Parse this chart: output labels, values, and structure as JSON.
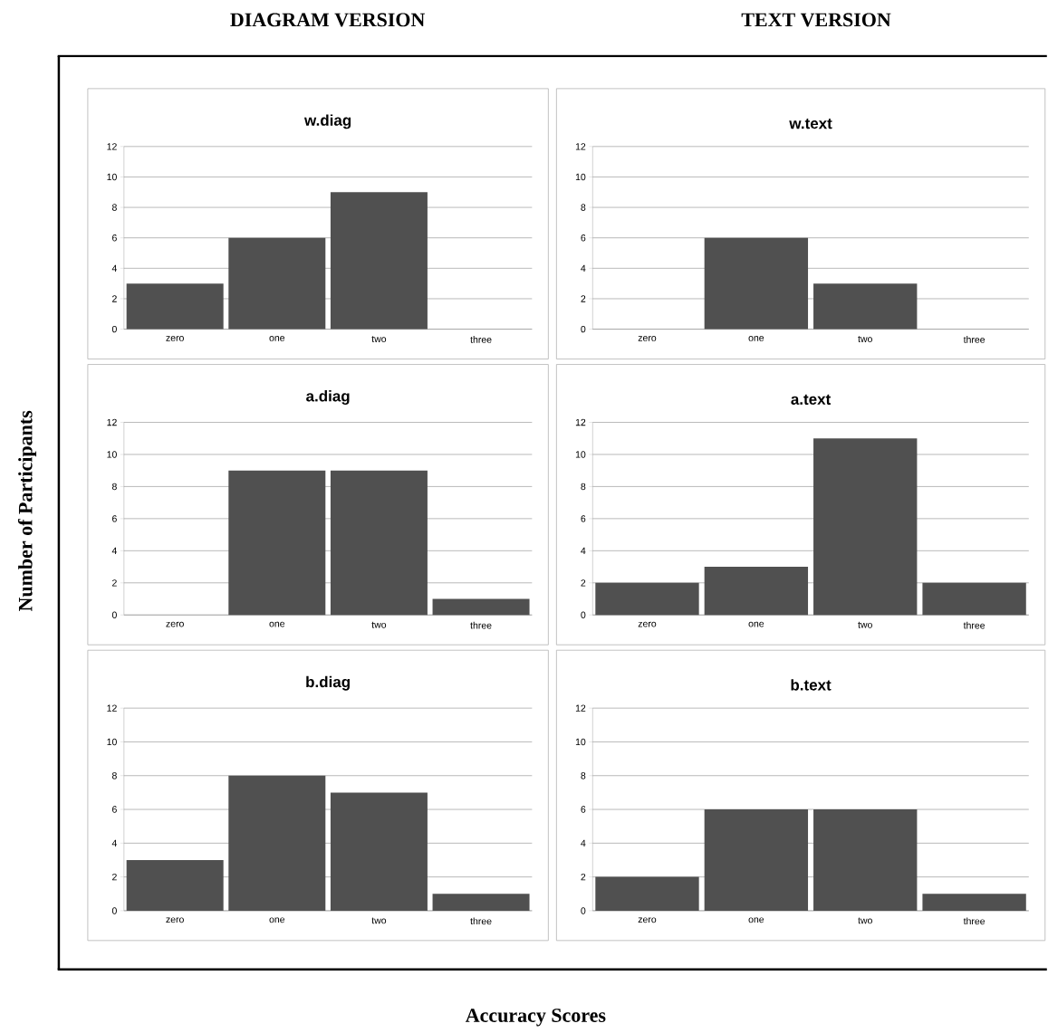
{
  "chart_data": [
    {
      "type": "bar",
      "title": "w.diag",
      "categories": [
        "zero",
        "one",
        "two",
        "three"
      ],
      "values": [
        3,
        6,
        9,
        0
      ],
      "color": "#505050",
      "ylim": [
        0,
        12
      ],
      "yticks": [
        0,
        2,
        4,
        6,
        8,
        10,
        12
      ],
      "grid": "y",
      "annotations": [
        "DIAGRAM VERSION",
        "Number of Participants",
        "Accuracy Scores"
      ]
    },
    {
      "type": "bar",
      "title": "w.text",
      "categories": [
        "zero",
        "one",
        "two",
        "three"
      ],
      "values": [
        0,
        6,
        3,
        0
      ],
      "color": "#505050",
      "ylim": [
        0,
        12
      ],
      "yticks": [
        0,
        2,
        4,
        6,
        8,
        10,
        12
      ],
      "grid": "y",
      "annotations": [
        "TEXT VERSION"
      ]
    },
    {
      "type": "bar",
      "title": "a.diag",
      "categories": [
        "zero",
        "one",
        "two",
        "three"
      ],
      "values": [
        0,
        9,
        9,
        1
      ],
      "color": "#505050",
      "ylim": [
        0,
        12
      ],
      "yticks": [
        0,
        2,
        4,
        6,
        8,
        10,
        12
      ],
      "grid": "y"
    },
    {
      "type": "bar",
      "title": "a.text",
      "categories": [
        "zero",
        "one",
        "two",
        "three"
      ],
      "values": [
        2,
        3,
        11,
        2
      ],
      "color": "#505050",
      "ylim": [
        0,
        12
      ],
      "yticks": [
        0,
        2,
        4,
        6,
        8,
        10,
        12
      ],
      "grid": "y"
    },
    {
      "type": "bar",
      "title": "b.diag",
      "categories": [
        "zero",
        "one",
        "two",
        "three"
      ],
      "values": [
        3,
        8,
        7,
        1
      ],
      "color": "#505050",
      "ylim": [
        0,
        12
      ],
      "yticks": [
        0,
        2,
        4,
        6,
        8,
        10,
        12
      ],
      "grid": "y"
    },
    {
      "type": "bar",
      "title": "b.text",
      "categories": [
        "zero",
        "one",
        "two",
        "three"
      ],
      "values": [
        2,
        6,
        6,
        1
      ],
      "color": "#505050",
      "ylim": [
        0,
        12
      ],
      "yticks": [
        0,
        2,
        4,
        6,
        8,
        10,
        12
      ],
      "grid": "y"
    }
  ]
}
